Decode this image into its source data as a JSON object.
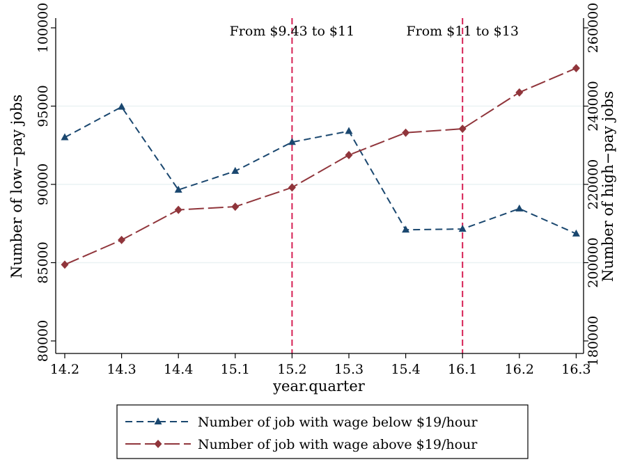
{
  "chart_data": {
    "type": "line",
    "x": [
      "14.2",
      "14.3",
      "14.4",
      "15.1",
      "15.2",
      "15.3",
      "15.4",
      "16.1",
      "16.2",
      "16.3"
    ],
    "xlabel": "year.quarter",
    "ylabel_left": "Number of low−pay jobs",
    "ylabel_right": "Number of high−pay jobs",
    "ylim_left": [
      80000,
      100000
    ],
    "yticks_left": [
      "80000",
      "85000",
      "90000",
      "95000",
      "100000"
    ],
    "ylim_right": [
      180000,
      260000
    ],
    "yticks_right": [
      "180000",
      "200000",
      "220000",
      "240000",
      "260000"
    ],
    "grid": true,
    "legend_position": "bottom",
    "series": [
      {
        "name": "Number of job with wage below $19/hour",
        "axis": "left",
        "color": "#1a476f",
        "marker": "triangle",
        "values": [
          93000,
          94950,
          89650,
          90850,
          92700,
          93400,
          87100,
          87150,
          88450,
          86850
        ]
      },
      {
        "name": "Number of job with wage above $19/hour",
        "axis": "right",
        "color": "#90353b",
        "marker": "diamond",
        "values": [
          199500,
          205800,
          213500,
          214300,
          219200,
          227500,
          233200,
          234200,
          243500,
          249700
        ]
      }
    ],
    "annotations": [
      {
        "x": "15.2",
        "text": "From $9.43 to $11",
        "color": "#d62054"
      },
      {
        "x": "16.1",
        "text": "From $11 to $13",
        "color": "#d62054"
      }
    ]
  }
}
